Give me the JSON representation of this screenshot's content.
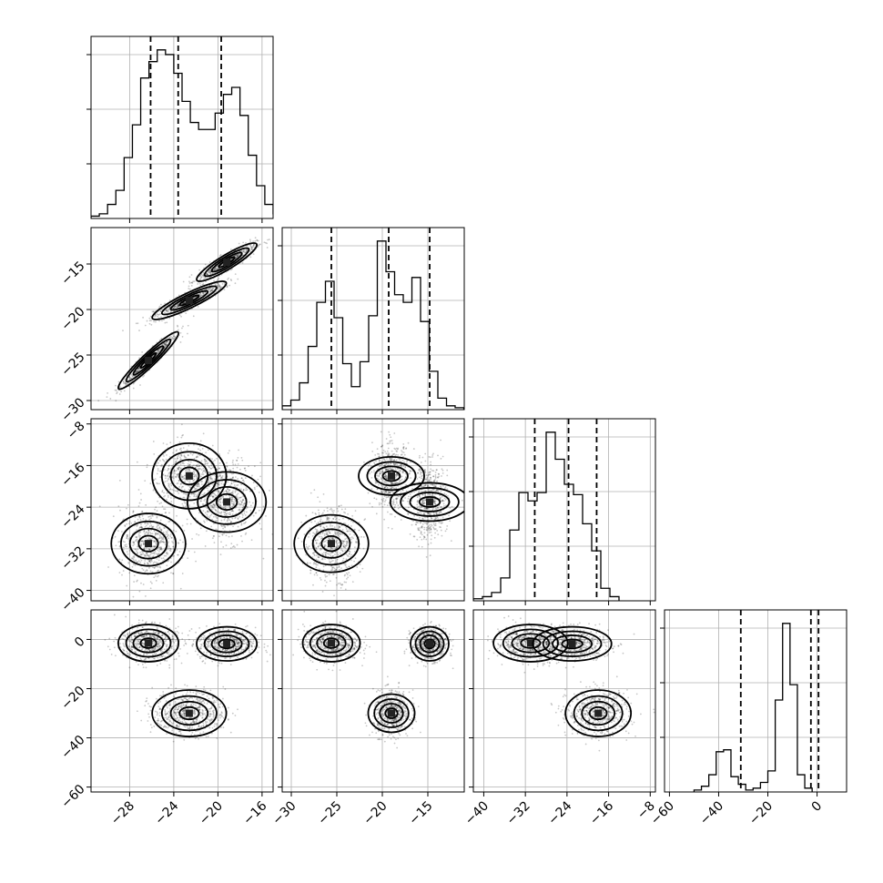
{
  "chart_data": {
    "type": "corner",
    "title": "",
    "parameters": [
      "",
      "",
      "",
      ""
    ],
    "grid": true,
    "ranges": [
      [
        -31.5,
        -15
      ],
      [
        -31,
        -11
      ],
      [
        -42,
        -7
      ],
      [
        -62,
        12
      ]
    ],
    "ticks": [
      [
        -28,
        -24,
        -20,
        -16
      ],
      [
        -30,
        -25,
        -20,
        -15
      ],
      [
        -40,
        -32,
        -24,
        -16,
        -8
      ],
      [
        -60,
        -40,
        -20,
        0
      ]
    ],
    "tick_labels": [
      [
        "−28",
        "−24",
        "−20",
        "−16"
      ],
      [
        "−30",
        "−25",
        "−20",
        "−15"
      ],
      [
        "−40",
        "−32",
        "−24",
        "−16",
        "−8"
      ],
      [
        "−60",
        "−40",
        "−20",
        "0"
      ]
    ],
    "histograms": [
      {
        "bin_edges_start": -31.5,
        "bin_width": 0.75,
        "counts": [
          0.01,
          0.02,
          0.06,
          0.12,
          0.26,
          0.4,
          0.6,
          0.67,
          0.72,
          0.7,
          0.62,
          0.5,
          0.41,
          0.38,
          0.38,
          0.45,
          0.53,
          0.56,
          0.44,
          0.27,
          0.14,
          0.06,
          0.02,
          0.01
        ],
        "quantiles": [
          -26.1,
          -23.6,
          -19.7
        ]
      },
      {
        "bin_edges_start": -31,
        "bin_width": 0.95,
        "counts": [
          0.02,
          0.05,
          0.14,
          0.33,
          0.56,
          0.67,
          0.48,
          0.24,
          0.12,
          0.25,
          0.49,
          0.88,
          0.72,
          0.6,
          0.56,
          0.69,
          0.46,
          0.2,
          0.06,
          0.02,
          0.01
        ],
        "quantiles": [
          -25.6,
          -19.3,
          -14.8
        ]
      },
      {
        "bin_edges_start": -42,
        "bin_width": 1.75,
        "counts": [
          0.01,
          0.02,
          0.04,
          0.11,
          0.34,
          0.52,
          0.48,
          0.52,
          0.81,
          0.68,
          0.56,
          0.51,
          0.37,
          0.24,
          0.06,
          0.02
        ],
        "quantiles": [
          -30.2,
          -23.7,
          -18.3
        ]
      },
      {
        "bin_edges_start": -50,
        "bin_width": 3,
        "counts": [
          0.01,
          0.03,
          0.09,
          0.21,
          0.22,
          0.08,
          0.04,
          0.01,
          0.02,
          0.05,
          0.11,
          0.48,
          0.88,
          0.56,
          0.09,
          0.02
        ],
        "quantiles": [
          -31.0,
          -2.5,
          0.6
        ]
      }
    ],
    "clusters": [
      {
        "mean": [
          -26.3,
          -25.6,
          -31.0,
          -1.5
        ],
        "std": [
          1.3,
          1.5,
          3.4,
          3.6
        ],
        "corr01": 0.95
      },
      {
        "mean": [
          -22.6,
          -19.0,
          -18.0,
          -30.0
        ],
        "std": [
          1.6,
          1.0,
          3.0,
          4.5
        ],
        "corr01": 0.9
      },
      {
        "mean": [
          -19.2,
          -14.8,
          -23.0,
          -1.8
        ],
        "std": [
          1.3,
          1.0,
          3.6,
          3.3
        ],
        "corr01": 0.9
      }
    ]
  }
}
